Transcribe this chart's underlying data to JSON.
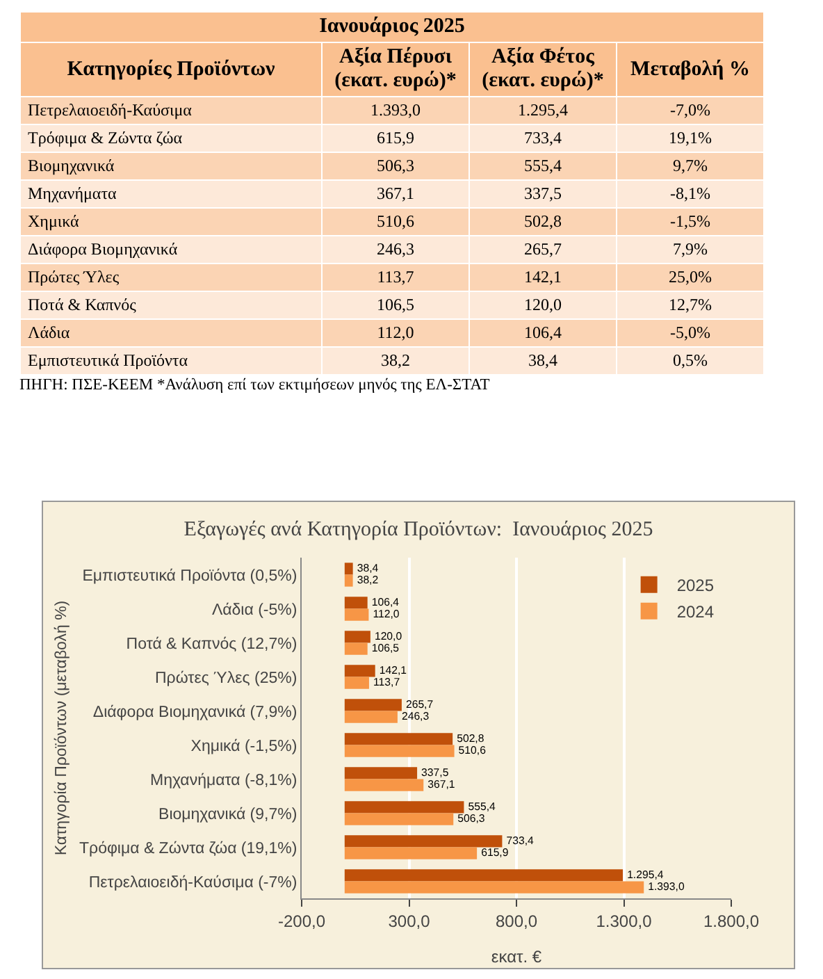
{
  "chart_data": [
    {
      "type": "other",
      "title": "Ιανουάριος 2025",
      "xlabel": "Κατηγορίες Προϊόντων",
      "categories": [
        "Πετρελαιοειδή-Καύσιμα",
        "Τρόφιμα & Ζώντα ζώα",
        "Βιομηχανικά",
        "Μηχανήματα",
        "Χημικά",
        "Διάφορα Βιομηχανικά",
        "Πρώτες Ύλες",
        "Ποτά & Καπνός",
        "Λάδια",
        "Εμπιστευτικά Προϊόντα"
      ],
      "series": [
        {
          "name": "Αξία Πέρυσι (εκατ. ευρώ)*",
          "colors": [
            "#fbd4b4",
            "#fde9d9",
            "#fbd4b4",
            "#fde9d9",
            "#fbd4b4",
            "#fde9d9",
            "#fbd4b4",
            "#fde9d9",
            "#fbd4b4",
            "#fde9d9"
          ],
          "values": [
            1393.0,
            615.9,
            506.3,
            367.1,
            510.6,
            246.3,
            113.7,
            106.5,
            112.0,
            38.2
          ],
          "value_labels": [
            "1.393,0",
            "615,9",
            "506,3",
            "367,1",
            "510,6",
            "246,3",
            "113,7",
            "106,5",
            "112,0",
            "38,2"
          ]
        },
        {
          "name": "Αξία Φέτος (εκατ. ευρώ)*",
          "colors": [
            "#fbd4b4",
            "#fde9d9",
            "#fbd4b4",
            "#fde9d9",
            "#fbd4b4",
            "#fde9d9",
            "#fbd4b4",
            "#fde9d9",
            "#fbd4b4",
            "#fde9d9"
          ],
          "values": [
            1295.4,
            733.4,
            555.4,
            337.5,
            502.8,
            265.7,
            142.1,
            120.0,
            106.4,
            38.4
          ],
          "value_labels": [
            "1.295,4",
            "733,4",
            "555,4",
            "337,5",
            "502,8",
            "265,7",
            "142,1",
            "120,0",
            "106,4",
            "38,4"
          ]
        },
        {
          "name": "Μεταβολή %",
          "colors": [
            "#fbd4b4",
            "#fde9d9",
            "#fbd4b4",
            "#fde9d9",
            "#fbd4b4",
            "#fde9d9",
            "#fbd4b4",
            "#fde9d9",
            "#fbd4b4",
            "#fde9d9"
          ],
          "values": [
            -7.0,
            19.1,
            9.7,
            -8.1,
            -1.5,
            7.9,
            25.0,
            12.7,
            -5.0,
            0.5
          ],
          "value_labels": [
            "-7,0%",
            "19,1%",
            "9,7%",
            "-8,1%",
            "-1,5%",
            "7,9%",
            "25,0%",
            "12,7%",
            "-5,0%",
            "0,5%"
          ]
        }
      ],
      "annotations": [
        "ΠΗΓΗ: ΠΣΕ-ΚΕΕΜ *Ανάλυση επί των εκτιμήσεων μηνός της ΕΛ-ΣΤΑΤ"
      ]
    },
    {
      "type": "bar",
      "orientation": "horizontal",
      "title": "Εξαγωγές ανά Κατηγορία Προϊόντων:  Ιανουάριος 2025",
      "xlabel": "εκατ. €",
      "ylabel": "Κατηγορία Προϊόντων (μεταβολή %)",
      "categories": [
        "Εμπιστευτικά Προϊόντα (0,5%)",
        "Λάδια (-5%)",
        "Ποτά & Καπνός (12,7%)",
        "Πρώτες Ύλες (25%)",
        "Διάφορα Βιομηχανικά (7,9%)",
        "Χημικά (-1,5%)",
        "Μηχανήματα (-8,1%)",
        "Βιομηχανικά (9,7%)",
        "Τρόφιμα & Ζώντα ζώα (19,1%)",
        "Πετρελαιοειδή-Καύσιμα (-7%)"
      ],
      "series": [
        {
          "name": "2025",
          "color": "#c0500a",
          "values": [
            38.4,
            106.4,
            120.0,
            142.1,
            265.7,
            502.8,
            337.5,
            555.4,
            733.4,
            1295.4
          ],
          "value_labels": [
            "38,4",
            "106,4",
            "120,0",
            "142,1",
            "265,7",
            "502,8",
            "337,5",
            "555,4",
            "733,4",
            "1.295,4"
          ]
        },
        {
          "name": "2024",
          "color": "#f79646",
          "values": [
            38.2,
            112.0,
            106.5,
            113.7,
            246.3,
            510.6,
            367.1,
            506.3,
            615.9,
            1393.0
          ],
          "value_labels": [
            "38,2",
            "112,0",
            "106,5",
            "113,7",
            "246,3",
            "510,6",
            "367,1",
            "506,3",
            "615,9",
            "1.393,0"
          ]
        }
      ],
      "xlim": [
        -200,
        1800
      ],
      "xticks": [
        {
          "value": -200,
          "label": "-200,0"
        },
        {
          "value": 300,
          "label": "300,0"
        },
        {
          "value": 800,
          "label": "800,0"
        },
        {
          "value": 1300,
          "label": "1.300,0"
        },
        {
          "value": 1800,
          "label": "1.800,0"
        }
      ],
      "grid": "x",
      "legend": "top right"
    }
  ]
}
